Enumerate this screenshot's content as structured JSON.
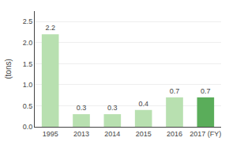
{
  "chart_data": {
    "type": "bar",
    "categories": [
      "1995",
      "2013",
      "2014",
      "2015",
      "2016",
      "2017 (FY)"
    ],
    "values": [
      2.2,
      0.3,
      0.3,
      0.4,
      0.7,
      0.7
    ],
    "colors": [
      "#b8e0b0",
      "#b8e0b0",
      "#b8e0b0",
      "#b8e0b0",
      "#b8e0b0",
      "#5aad5a"
    ],
    "data_labels": true,
    "y_label": "(tons)",
    "ylim": [
      0,
      2.75
    ],
    "yticks": [
      {
        "value": 0,
        "label": "0.0"
      },
      0.5,
      {
        "value": 1,
        "label": "1.0"
      },
      1.5,
      {
        "value": 2,
        "label": "2.0"
      },
      2.5
    ],
    "grid": true
  }
}
